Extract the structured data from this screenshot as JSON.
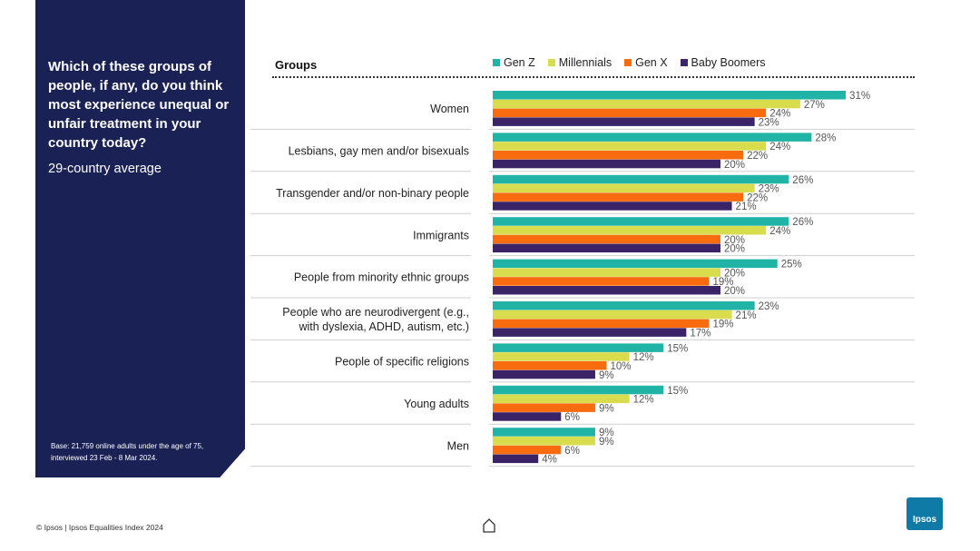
{
  "panel": {
    "question": "Which of these groups of people, if any, do you think most experience unequal or unfair treatment in your country today?",
    "subtitle": "29-country average",
    "base_note": "Base: 21,759 online adults under the age of 75, interviewed 23 Feb - 8 Mar 2024."
  },
  "footer": {
    "source": "© Ipsos | Ipsos Equalities Index 2024",
    "logo_text": "Ipsos"
  },
  "colors": {
    "panel_bg": "#1a2155",
    "gen_z": "#21b3a6",
    "millennials": "#d9dc4d",
    "gen_x": "#f86b0e",
    "baby_boomers": "#3b2368"
  },
  "chart_data": {
    "type": "bar",
    "orientation": "horizontal",
    "title": "Which of these groups of people, if any, do you think most experience unequal or unfair treatment in your country today?",
    "category_header": "Groups",
    "value_suffix": "%",
    "xlim": [
      0,
      34
    ],
    "legend_position": "top",
    "categories": [
      [
        "Women"
      ],
      [
        "Lesbians, gay men and/or bisexuals"
      ],
      [
        "Transgender and/or non-binary people"
      ],
      [
        "Immigrants"
      ],
      [
        "People from minority ethnic groups"
      ],
      [
        "People who are neurodivergent (e.g.,",
        "with dyslexia, ADHD, autism, etc.)"
      ],
      [
        "People of specific religions"
      ],
      [
        "Young adults"
      ],
      [
        "Men"
      ]
    ],
    "series": [
      {
        "name": "Gen Z",
        "color": "#21b3a6",
        "values": [
          31,
          28,
          26,
          26,
          25,
          23,
          15,
          15,
          9
        ]
      },
      {
        "name": "Millennials",
        "color": "#d9dc4d",
        "values": [
          27,
          24,
          23,
          24,
          20,
          21,
          12,
          12,
          9
        ]
      },
      {
        "name": "Gen X",
        "color": "#f86b0e",
        "values": [
          24,
          22,
          22,
          20,
          19,
          19,
          10,
          9,
          6
        ]
      },
      {
        "name": "Baby Boomers",
        "color": "#3b2368",
        "values": [
          23,
          20,
          21,
          20,
          20,
          17,
          9,
          6,
          4
        ]
      }
    ]
  }
}
